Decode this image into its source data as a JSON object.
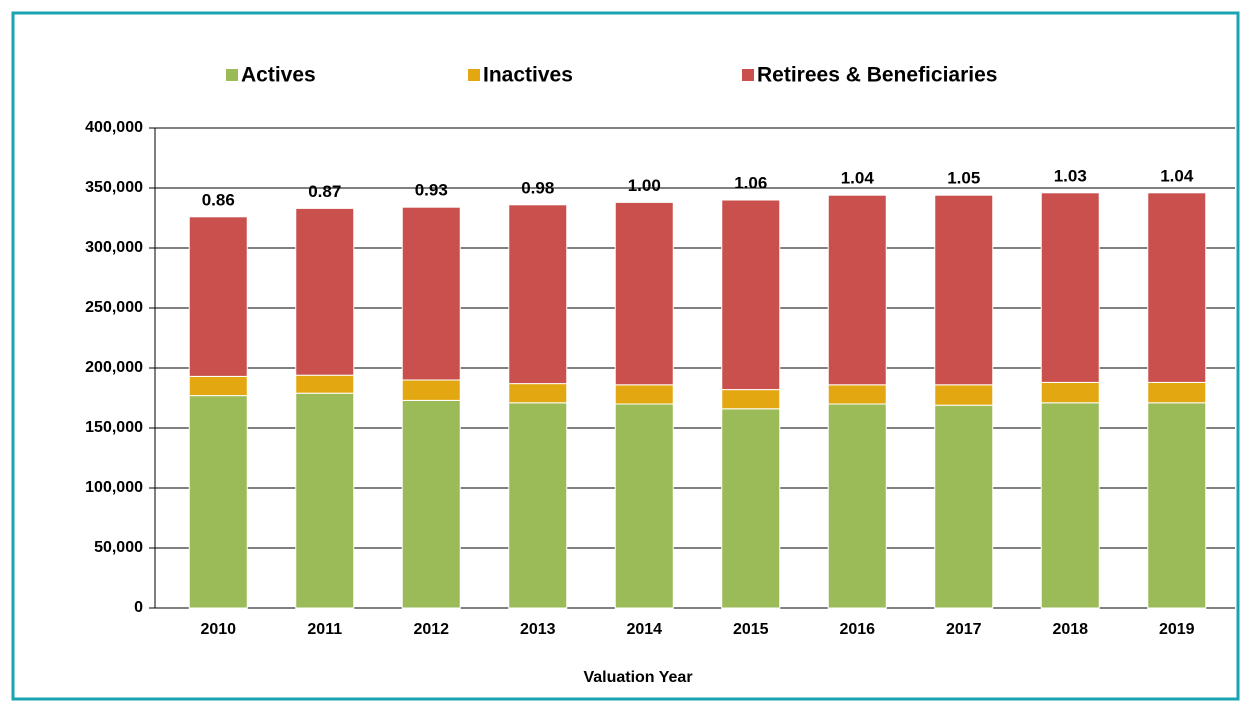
{
  "chart_data": {
    "type": "stacked_bar",
    "x_label": "Valuation Year",
    "categories": [
      "2010",
      "2011",
      "2012",
      "2013",
      "2014",
      "2015",
      "2016",
      "2017",
      "2018",
      "2019"
    ],
    "series": [
      {
        "name": "Actives",
        "color": "#9bbb59",
        "values": [
          177000,
          179000,
          173000,
          171000,
          170000,
          166000,
          170000,
          169000,
          171000,
          171000
        ]
      },
      {
        "name": "Inactives",
        "color": "#e3a712",
        "values": [
          16000,
          15000,
          17000,
          16000,
          16000,
          16000,
          16000,
          17000,
          17000,
          17000
        ]
      },
      {
        "name": "Retirees & Beneficiaries",
        "color": "#c9504d",
        "values": [
          133000,
          139000,
          144000,
          149000,
          152000,
          158000,
          158000,
          158000,
          158000,
          158000
        ]
      }
    ],
    "ratios": [
      0.86,
      0.87,
      0.93,
      0.98,
      1.0,
      1.06,
      1.04,
      1.05,
      1.03,
      1.04
    ],
    "ratio_labels": [
      "0.86",
      "0.87",
      "0.93",
      "0.98",
      "1.00",
      "1.06",
      "1.04",
      "1.05",
      "1.03",
      "1.04"
    ],
    "ylim": [
      0,
      400000
    ],
    "yticks": [
      0,
      {
        "value": 50000,
        "label": "50,000"
      },
      {
        "value": 100000,
        "label": "100,000"
      },
      {
        "value": 150000,
        "label": "150,000"
      },
      {
        "value": 200000,
        "label": "200,000"
      },
      {
        "value": 250000,
        "label": "250,000"
      },
      {
        "value": 300000,
        "label": "300,000"
      },
      {
        "value": 350000,
        "label": "350,000"
      },
      {
        "value": 400000,
        "label": "400,000"
      }
    ],
    "grid": true,
    "legend": "top"
  }
}
